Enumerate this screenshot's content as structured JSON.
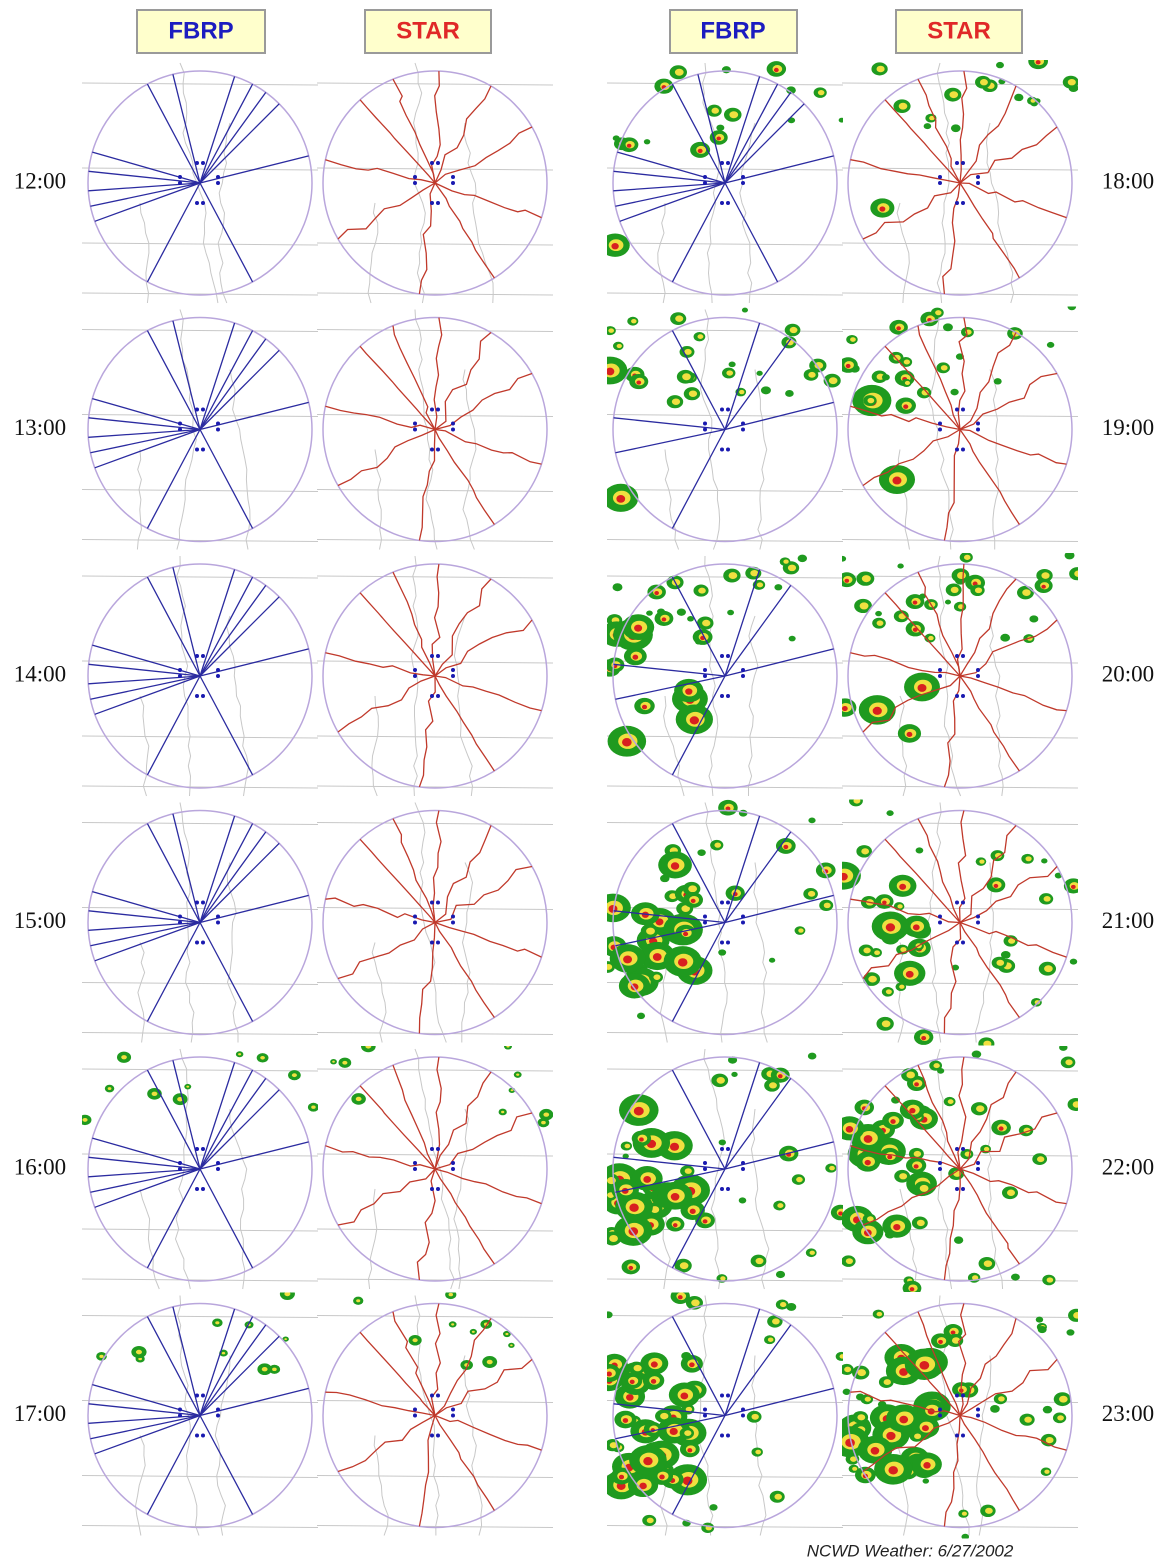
{
  "headers": [
    "FBRP",
    "STAR",
    "FBRP",
    "STAR"
  ],
  "times_left": [
    "12:00",
    "13:00",
    "14:00",
    "15:00",
    "16:00",
    "17:00"
  ],
  "times_right": [
    "18:00",
    "19:00",
    "20:00",
    "21:00",
    "22:00",
    "23:00"
  ],
  "caption": "NCWD Weather: 6/27/2002"
}
